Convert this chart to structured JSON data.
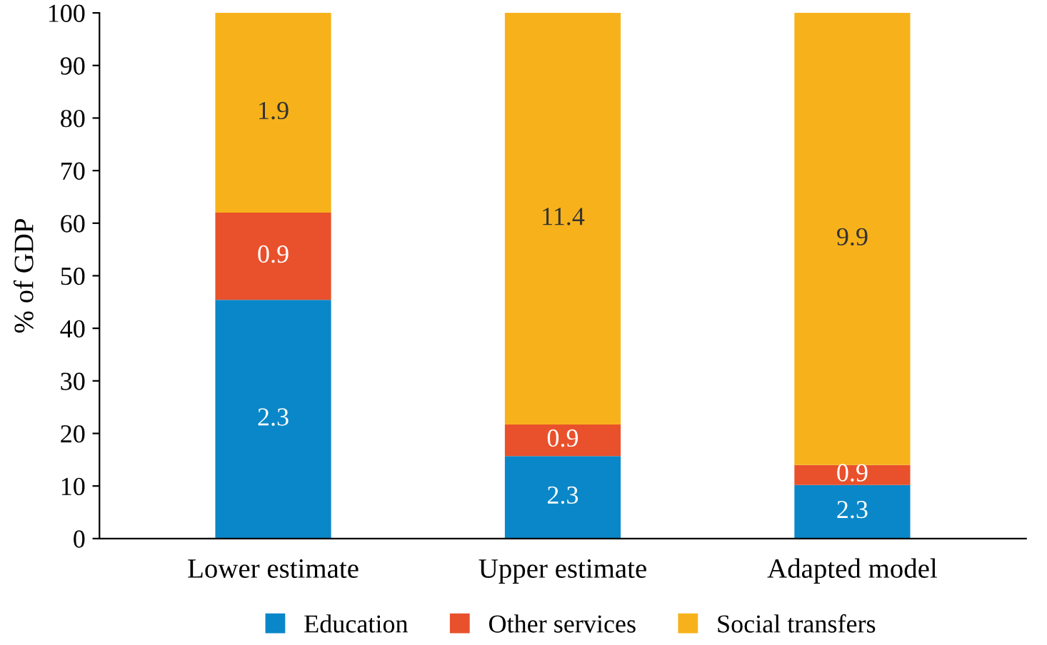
{
  "chart_data": {
    "type": "bar",
    "stacked": true,
    "ylabel": "% of GDP",
    "categories": [
      "Lower estimate",
      "Upper estimate",
      "Adapted model"
    ],
    "series": [
      {
        "name": "Education",
        "color": "#0a87c8",
        "values": [
          45.4,
          15.7,
          10.2
        ]
      },
      {
        "name": "Other services",
        "color": "#e8512c",
        "values": [
          16.6,
          6.0,
          3.8
        ]
      },
      {
        "name": "Social transfers",
        "color": "#f7b21b",
        "values": [
          38.0,
          78.3,
          86.0
        ]
      }
    ],
    "annotations": [
      "2.3",
      "0.9",
      "1.9",
      "2.3",
      "0.9",
      "11.4",
      "2.3",
      "0.9",
      "9.9"
    ],
    "ylim": [
      0,
      100
    ],
    "yticks": [
      0,
      10,
      20,
      30,
      40,
      50,
      60,
      70,
      80,
      90,
      100
    ],
    "grid": false,
    "legend": "bottom"
  }
}
